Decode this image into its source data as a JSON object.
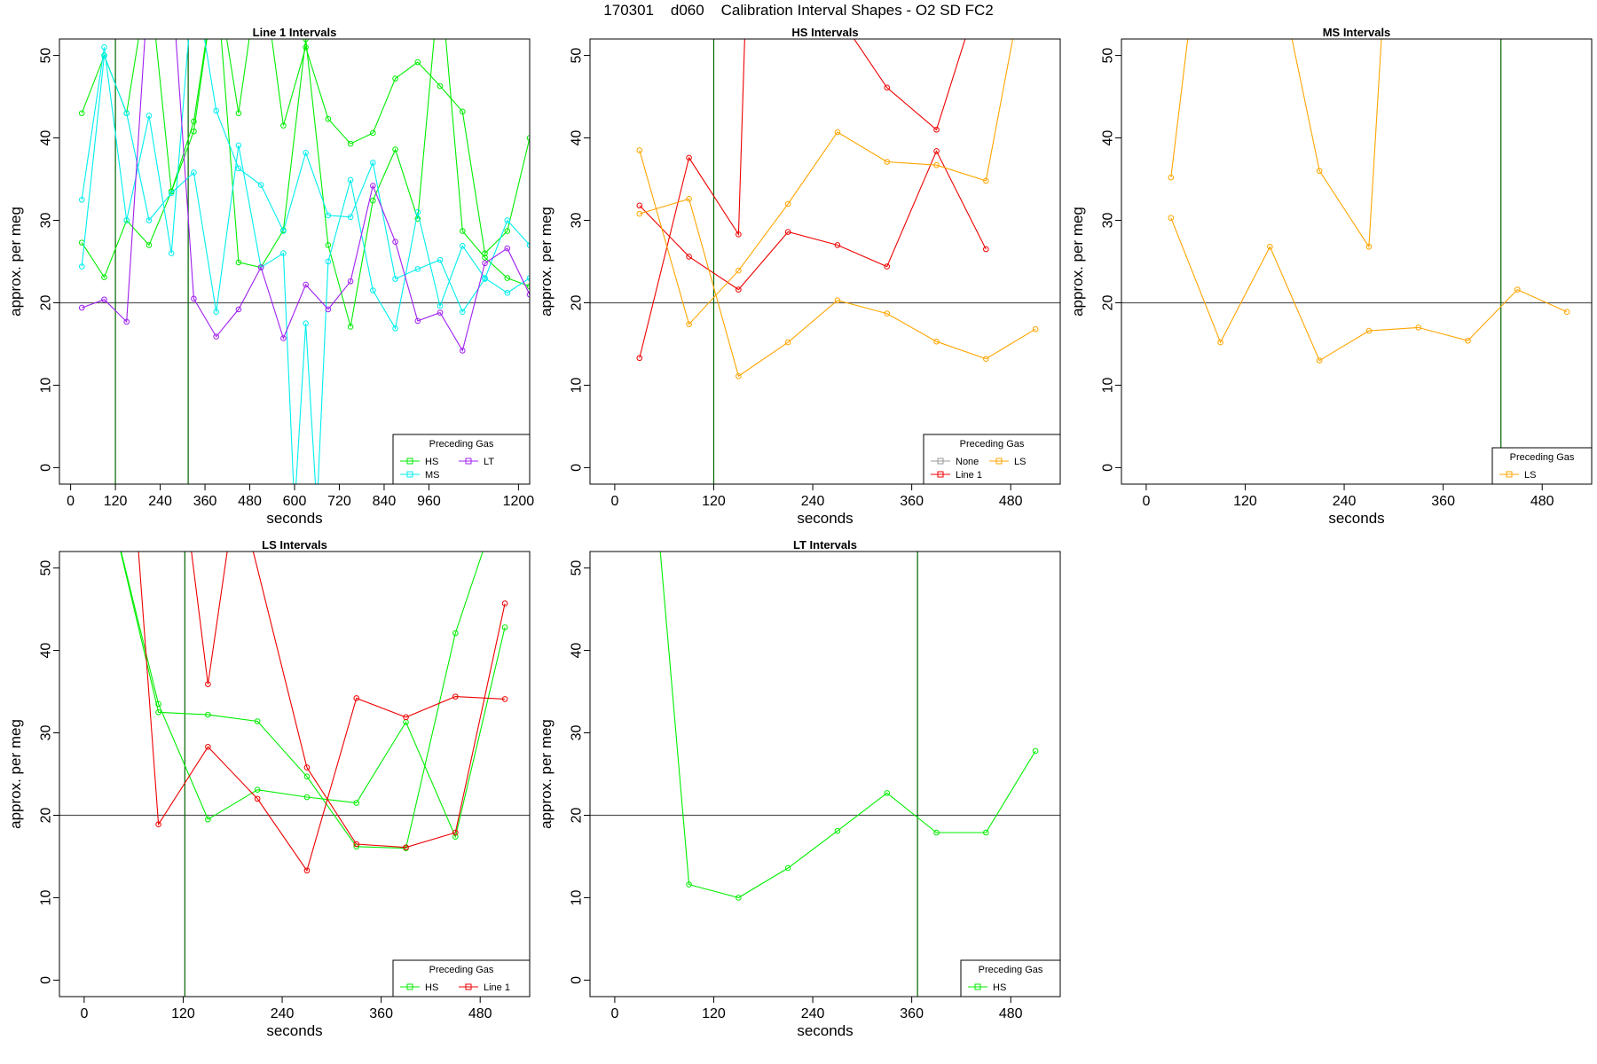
{
  "page_title": "170301    d060    Calibration Interval Shapes - O2 SD FC2",
  "colors": {
    "HS": "#00ee00",
    "MS": "#00eeee",
    "LT": "#a020f0",
    "Line 1": "#ee0000",
    "LS": "#ffa500",
    "None": "#999999",
    "ref_line": "#555555",
    "vline": "#006400"
  },
  "chart_data": [
    {
      "type": "line",
      "title": "Line 1 Intervals",
      "xlabel": "seconds",
      "ylabel": "approx. per meg",
      "xlim": [
        -30,
        1230
      ],
      "ylim": [
        -2,
        52
      ],
      "xticks": [
        0,
        120,
        240,
        360,
        480,
        600,
        720,
        840,
        960,
        1200
      ],
      "yticks": [
        0,
        10,
        20,
        30,
        40,
        50
      ],
      "hline": 20,
      "vlines": [
        120,
        315
      ],
      "legend": {
        "title": "Preceding Gas",
        "position": "bottom-right",
        "entries": [
          "HS",
          "LT",
          "MS"
        ]
      },
      "series": [
        {
          "name": "HS",
          "x": [
            30,
            90,
            150,
            210,
            270,
            330,
            390,
            450,
            510,
            570,
            630,
            690,
            750,
            810,
            870,
            930,
            990,
            1050,
            1110,
            1170,
            1230
          ],
          "y": [
            43,
            50,
            43,
            60,
            33.5,
            42,
            60,
            43,
            62,
            41.5,
            51,
            42.3,
            39.3,
            40.6,
            47.2,
            49.2,
            46.3,
            43.2,
            26,
            28.7,
            40
          ]
        },
        {
          "name": "HS",
          "x": [
            30,
            90,
            150,
            210,
            270,
            330,
            390,
            450,
            510,
            570,
            630,
            690,
            750,
            810,
            870,
            930,
            990,
            1050,
            1110,
            1170,
            1230
          ],
          "y": [
            27.3,
            23.1,
            30,
            27,
            33.5,
            40.8,
            60,
            24.9,
            24.3,
            28.8,
            52,
            27,
            17.1,
            32.4,
            38.6,
            30.2,
            60,
            28.7,
            25.5,
            23,
            22
          ]
        },
        {
          "name": "MS",
          "x": [
            30,
            90,
            150,
            210,
            270,
            330,
            390,
            450,
            510,
            570,
            630,
            690,
            750,
            810,
            870,
            930,
            990,
            1050,
            1110,
            1170,
            1230
          ],
          "y": [
            32.5,
            51,
            30,
            42.7,
            26,
            60,
            43.3,
            36.3,
            34.3,
            28.7,
            38.2,
            30.6,
            30.4,
            37,
            22.9,
            24.1,
            25.2,
            18.9,
            22.9,
            30,
            27
          ]
        },
        {
          "name": "MS",
          "x": [
            30,
            90,
            150,
            210,
            270,
            330,
            390,
            450,
            510,
            570,
            600,
            630,
            660,
            690,
            750,
            810,
            870,
            930,
            990,
            1050,
            1110,
            1170,
            1230
          ],
          "y": [
            24.4,
            50,
            43,
            30,
            33.3,
            35.8,
            18.9,
            39.1,
            24.3,
            26,
            -5,
            17.5,
            -5,
            25,
            34.9,
            21.5,
            16.9,
            31,
            19.6,
            26.9,
            23,
            21.2,
            23
          ]
        },
        {
          "name": "LT",
          "x": [
            30,
            90,
            150,
            210,
            270,
            330,
            390,
            450,
            510,
            570,
            630,
            690,
            750,
            810,
            870,
            930,
            990,
            1050,
            1110,
            1170,
            1230
          ],
          "y": [
            19.4,
            20.4,
            17.7,
            60,
            60,
            20.5,
            15.9,
            19.2,
            24.3,
            15.7,
            22.2,
            19.2,
            22.6,
            34.2,
            27.4,
            17.8,
            18.8,
            14.2,
            24.8,
            26.6,
            21
          ]
        }
      ]
    },
    {
      "type": "line",
      "title": "HS Intervals",
      "xlabel": "seconds",
      "ylabel": "approx. per meg",
      "xlim": [
        -30,
        540
      ],
      "ylim": [
        -2,
        52
      ],
      "xticks": [
        0,
        120,
        240,
        360,
        480
      ],
      "yticks": [
        0,
        10,
        20,
        30,
        40,
        50
      ],
      "hline": 20,
      "vlines": [
        120
      ],
      "legend": {
        "title": "Preceding Gas",
        "position": "bottom-right",
        "entries": [
          "None",
          "LS",
          "Line 1"
        ]
      },
      "series": [
        {
          "name": "Line 1",
          "x": [
            30,
            90,
            150,
            210,
            270,
            330,
            390,
            450
          ],
          "y": [
            31.8,
            25.6,
            21.6,
            28.6,
            27,
            24.4,
            38.4,
            26.5
          ]
        },
        {
          "name": "Line 1",
          "x": [
            30,
            90,
            150,
            160,
            270,
            330,
            390,
            450
          ],
          "y": [
            13.3,
            37.6,
            28.3,
            60,
            55,
            46.1,
            41,
            60
          ]
        },
        {
          "name": "LS",
          "x": [
            30,
            90,
            150,
            210,
            270,
            330,
            390,
            450,
            510
          ],
          "y": [
            30.8,
            32.6,
            11.1,
            15.2,
            20.3,
            18.7,
            15.3,
            13.2,
            16.8
          ]
        },
        {
          "name": "LS",
          "x": [
            30,
            90,
            150,
            210,
            270,
            330,
            390,
            450,
            490
          ],
          "y": [
            38.5,
            17.4,
            23.9,
            32,
            40.7,
            37.1,
            36.7,
            34.8,
            56
          ]
        }
      ]
    },
    {
      "type": "line",
      "title": "MS Intervals",
      "xlabel": "seconds",
      "ylabel": "approx. per meg",
      "xlim": [
        -30,
        540
      ],
      "ylim": [
        -2,
        52
      ],
      "xticks": [
        0,
        120,
        240,
        360,
        480
      ],
      "yticks": [
        0,
        10,
        20,
        30,
        40,
        50
      ],
      "hline": 20,
      "vlines": [
        430
      ],
      "legend": {
        "title": "Preceding Gas",
        "position": "bottom-right",
        "entries": [
          "LS"
        ]
      },
      "series": [
        {
          "name": "LS",
          "x": [
            30,
            90,
            150,
            210,
            270,
            330,
            390,
            450,
            510
          ],
          "y": [
            30.3,
            15.2,
            26.8,
            13,
            16.6,
            17,
            15.4,
            21.6,
            18.9
          ]
        },
        {
          "name": "LS",
          "x": [
            30,
            60,
            160,
            210,
            270,
            290
          ],
          "y": [
            35.2,
            60,
            60,
            36,
            26.8,
            60
          ]
        }
      ]
    },
    {
      "type": "line",
      "title": "LS Intervals",
      "xlabel": "seconds",
      "ylabel": "approx. per meg",
      "xlim": [
        -30,
        540
      ],
      "ylim": [
        -2,
        52
      ],
      "xticks": [
        0,
        120,
        240,
        360,
        480
      ],
      "yticks": [
        0,
        10,
        20,
        30,
        40,
        50
      ],
      "hline": 20,
      "vlines": [
        122
      ],
      "legend": {
        "title": "Preceding Gas",
        "position": "bottom-right",
        "entries": [
          "HS",
          "Line 1"
        ]
      },
      "series": [
        {
          "name": "HS",
          "x": [
            30,
            90,
            150,
            210,
            270,
            330,
            390,
            450,
            510
          ],
          "y": [
            58,
            32.5,
            32.2,
            31.4,
            24.7,
            16.2,
            16,
            42.1,
            60
          ]
        },
        {
          "name": "HS",
          "x": [
            30,
            90,
            150,
            210,
            270,
            330,
            390,
            450,
            510
          ],
          "y": [
            58,
            33.5,
            19.5,
            23.1,
            22.2,
            21.5,
            31.3,
            17.4,
            42.8
          ]
        },
        {
          "name": "Line 1",
          "x": [
            60,
            90,
            150,
            210,
            270,
            330,
            390,
            450,
            510
          ],
          "y": [
            60,
            18.9,
            28.3,
            22,
            13.3,
            34.2,
            31.9,
            34.4,
            34.1
          ]
        },
        {
          "name": "Line 1",
          "x": [
            120,
            150,
            185,
            270,
            330,
            390,
            450,
            510
          ],
          "y": [
            60,
            35.9,
            60,
            25.8,
            16.5,
            16.1,
            17.9,
            45.7
          ]
        }
      ]
    },
    {
      "type": "line",
      "title": "LT Intervals",
      "xlabel": "seconds",
      "ylabel": "approx. per meg",
      "xlim": [
        -30,
        540
      ],
      "ylim": [
        -2,
        52
      ],
      "xticks": [
        0,
        120,
        240,
        360,
        480
      ],
      "yticks": [
        0,
        10,
        20,
        30,
        40,
        50
      ],
      "hline": 20,
      "vlines": [
        367
      ],
      "legend": {
        "title": "Preceding Gas",
        "position": "bottom-right",
        "entries": [
          "HS"
        ]
      },
      "series": [
        {
          "name": "HS",
          "x": [
            50,
            90,
            150,
            210,
            270,
            330,
            390,
            450,
            510
          ],
          "y": [
            58,
            11.6,
            10,
            13.6,
            18.1,
            22.7,
            17.9,
            17.9,
            27.8
          ]
        }
      ]
    }
  ]
}
